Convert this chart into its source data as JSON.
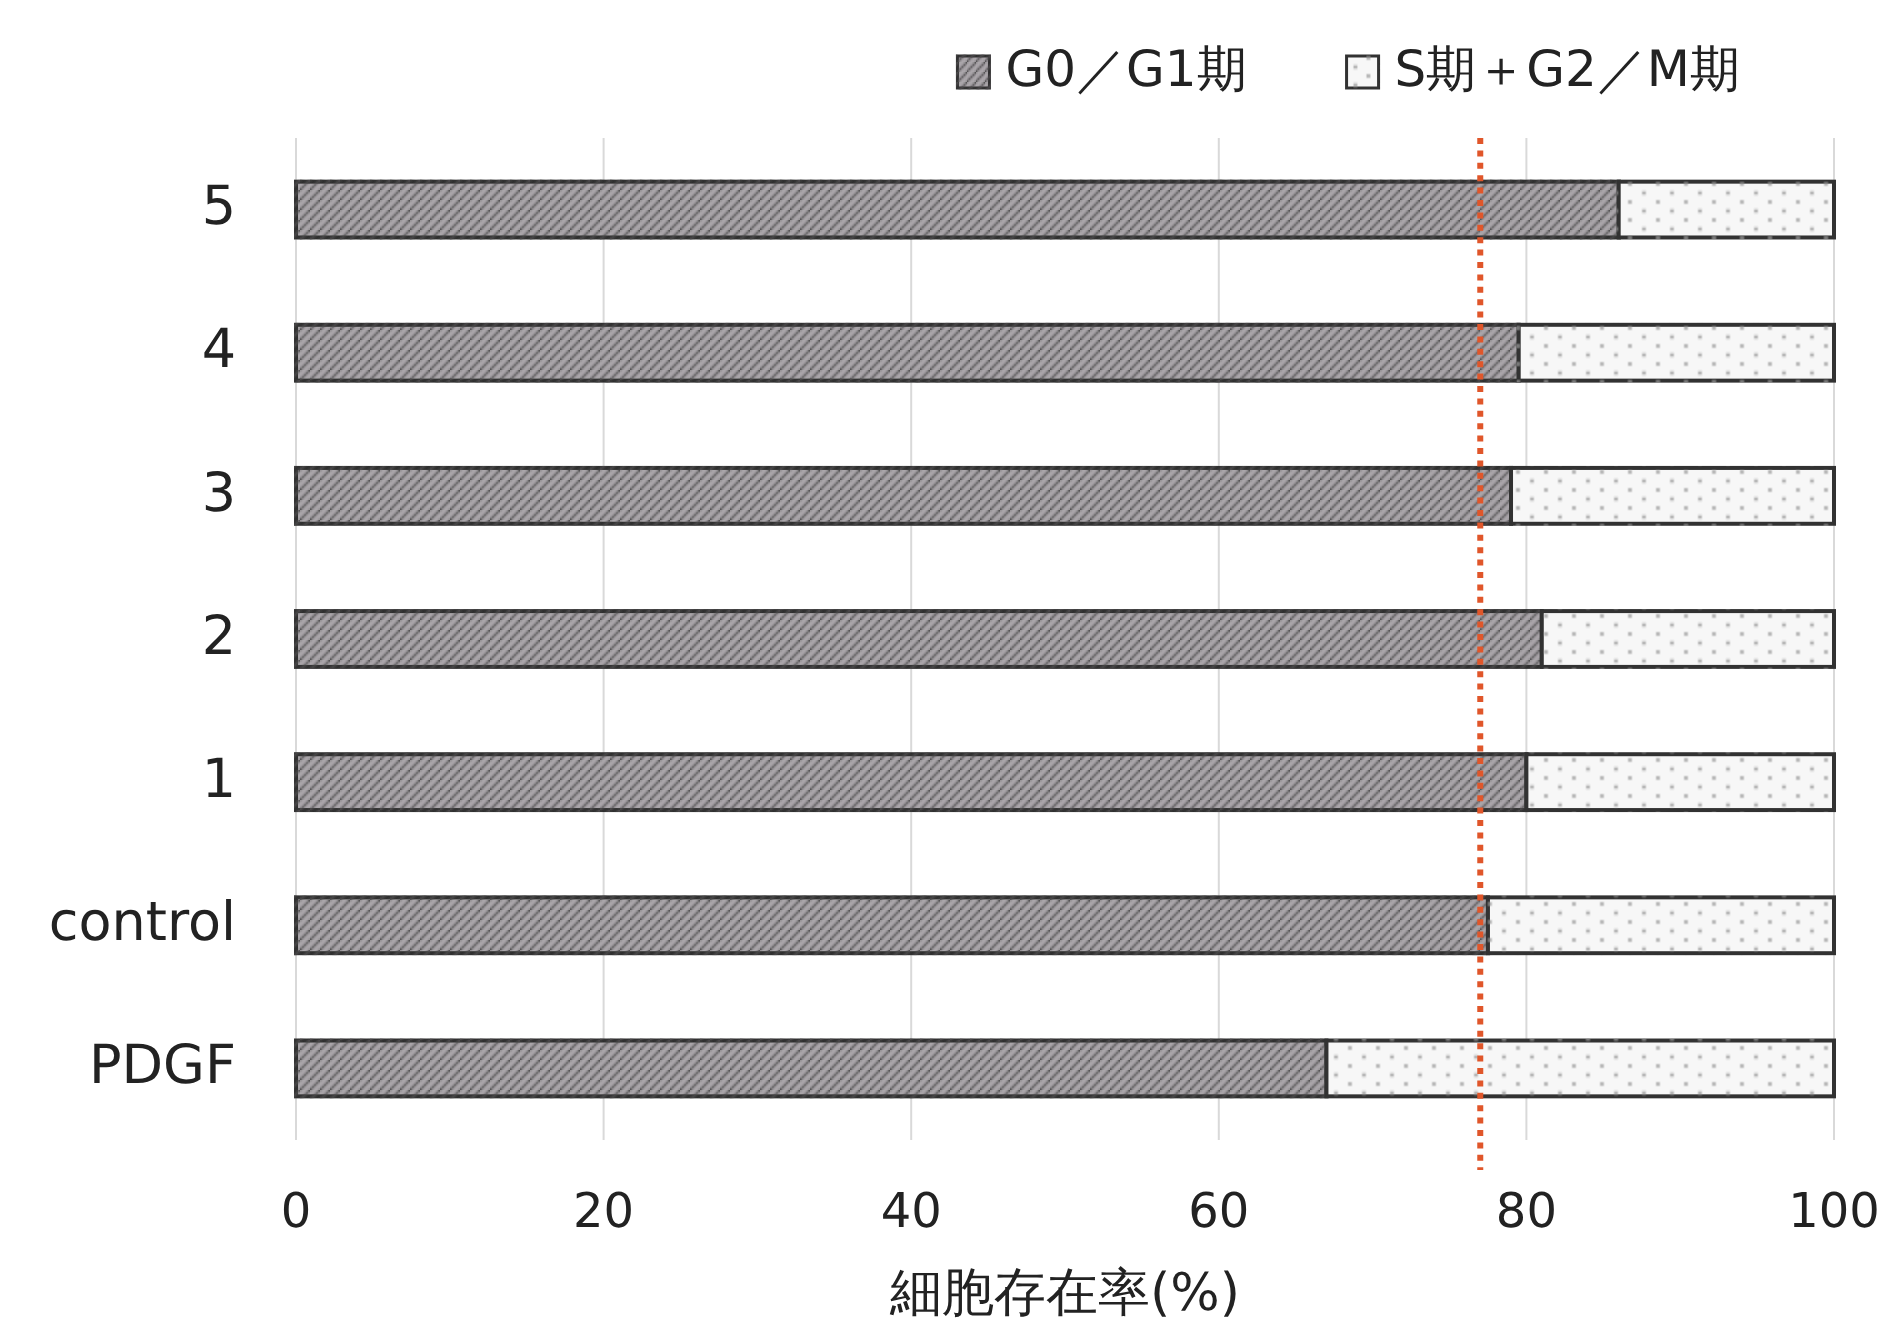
{
  "chart_data": {
    "type": "bar",
    "orientation": "horizontal",
    "stacked": true,
    "categories": [
      "5",
      "4",
      "3",
      "2",
      "1",
      "control",
      "PDGF"
    ],
    "series": [
      {
        "name": "G0／G1期",
        "color": "#aaa6aa",
        "values": [
          86,
          79.5,
          79,
          81,
          80,
          77.5,
          67
        ]
      },
      {
        "name": "S期＋G2／M期",
        "color": "#f7f7f7",
        "values": [
          14,
          20.5,
          21,
          19,
          20,
          22.5,
          33
        ]
      }
    ],
    "xlabel": "細胞存在率(%)",
    "xlim": [
      0,
      100
    ],
    "xticks": [
      0,
      20,
      40,
      60,
      80,
      100
    ],
    "grid": "x",
    "legend": "top right",
    "ref_lines": [
      {
        "axis": "x",
        "value": 77,
        "color": "#e0562a",
        "line_style": "dotted"
      }
    ]
  }
}
